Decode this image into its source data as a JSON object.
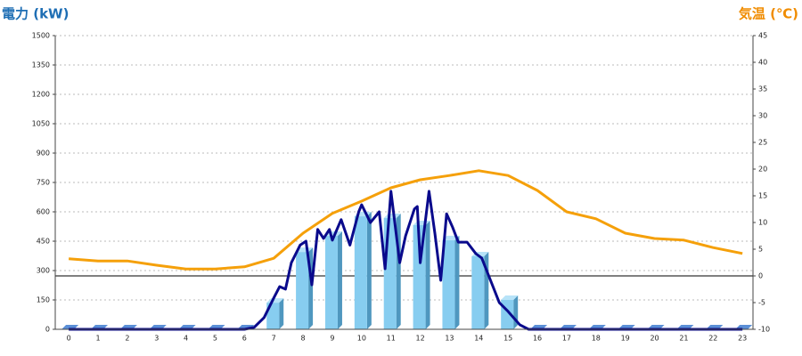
{
  "chart_data": {
    "type": "combo",
    "y_title": "電力 (kW)",
    "y2_title": "気温 (℃)",
    "categories": [
      0,
      1,
      2,
      3,
      4,
      5,
      6,
      7,
      8,
      9,
      10,
      11,
      12,
      13,
      14,
      15,
      16,
      17,
      18,
      19,
      20,
      21,
      22,
      23
    ],
    "xlim": [
      -0.46,
      23.36
    ],
    "ylim": [
      0,
      1500
    ],
    "yticks": [
      0,
      150,
      300,
      450,
      600,
      750,
      900,
      1050,
      1200,
      1350,
      1500
    ],
    "y2lim": [
      -10,
      45
    ],
    "y2ticks": [
      -10,
      -5,
      0,
      5,
      10,
      15,
      20,
      25,
      30,
      35,
      40,
      45
    ],
    "grid": true,
    "y2_zero_line": true,
    "series": [
      {
        "type": "bar",
        "color": "#87cdf0",
        "side_color": "#4f97bf",
        "values": [
          0,
          0,
          0,
          0,
          0,
          0,
          0,
          136,
          395,
          477,
          577,
          568,
          532,
          455,
          373,
          150,
          0,
          0,
          0,
          0,
          0,
          0,
          0,
          0
        ]
      },
      {
        "type": "line",
        "color": "#0a0a8c",
        "x": [
          0,
          6,
          6.33,
          6.67,
          7,
          7.2,
          7.4,
          7.6,
          7.9,
          8.1,
          8.3,
          8.5,
          8.7,
          8.9,
          9,
          9.3,
          9.6,
          9.9,
          10,
          10.3,
          10.6,
          10.8,
          11,
          11.3,
          11.5,
          11.8,
          11.9,
          12,
          12.3,
          12.5,
          12.7,
          12.9,
          13.1,
          13.3,
          13.6,
          13.9,
          14.1,
          14.4,
          14.7,
          15,
          15.4,
          15.7,
          23
        ],
        "values": [
          0,
          0,
          10,
          60,
          160,
          218,
          205,
          340,
          430,
          450,
          227,
          510,
          464,
          510,
          455,
          560,
          430,
          600,
          636,
          545,
          600,
          309,
          705,
          340,
          477,
          614,
          627,
          340,
          705,
          490,
          250,
          590,
          523,
          445,
          445,
          386,
          364,
          250,
          136,
          91,
          23,
          0,
          0
        ]
      },
      {
        "type": "line",
        "axis": "y2",
        "color": "#f5a00a",
        "values": [
          3.2,
          2.8,
          2.8,
          2,
          1.3,
          1.3,
          1.7,
          3.3,
          8,
          11.7,
          14,
          16.5,
          18,
          18.8,
          19.7,
          18.8,
          16,
          12,
          10.7,
          8,
          7,
          6.7,
          5.3,
          4.2
        ]
      }
    ]
  }
}
